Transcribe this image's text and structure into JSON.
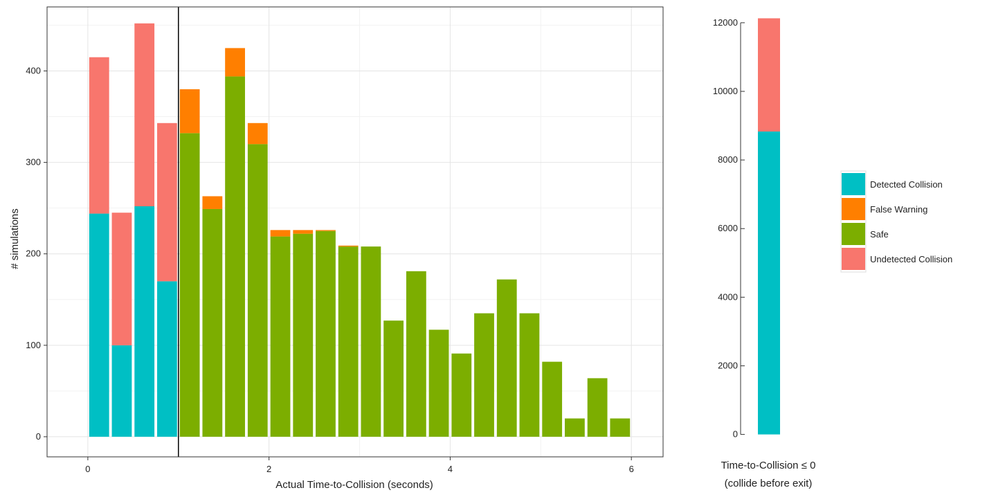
{
  "chart_data": [
    {
      "type": "bar",
      "stacked": true,
      "xlabel": "Actual Time-to-Collision (seconds)",
      "ylabel": "# simulations",
      "xlim": [
        -0.45,
        6.35
      ],
      "ylim": [
        -22,
        470
      ],
      "xticks": [
        0,
        2,
        4,
        6
      ],
      "yticks": [
        0,
        100,
        200,
        300,
        400
      ],
      "grid": true,
      "bar_width": 0.22,
      "threshold_line_x": 1.0,
      "x": [
        0.125,
        0.375,
        0.625,
        0.875,
        1.125,
        1.375,
        1.625,
        1.875,
        2.125,
        2.375,
        2.625,
        2.875,
        3.125,
        3.375,
        3.625,
        3.875,
        4.125,
        4.375,
        4.625,
        4.875,
        5.125,
        5.375,
        5.625,
        5.875
      ],
      "series": [
        {
          "name": "Detected Collision",
          "color": "#00BFC4",
          "values": [
            244,
            100,
            252,
            170,
            0,
            0,
            0,
            0,
            0,
            0,
            0,
            0,
            0,
            0,
            0,
            0,
            0,
            0,
            0,
            0,
            0,
            0,
            0,
            0
          ]
        },
        {
          "name": "Undetected Collision",
          "color": "#F8766D",
          "values": [
            171,
            145,
            200,
            173,
            0,
            0,
            0,
            0,
            0,
            0,
            0,
            0,
            0,
            0,
            0,
            0,
            0,
            0,
            0,
            0,
            0,
            0,
            0,
            0
          ]
        },
        {
          "name": "Safe",
          "color": "#7CAE00",
          "values": [
            0,
            0,
            0,
            0,
            332,
            249,
            394,
            320,
            219,
            222,
            225,
            208,
            208,
            127,
            181,
            117,
            91,
            135,
            172,
            135,
            82,
            20,
            64,
            20
          ]
        },
        {
          "name": "False Warning",
          "color": "#FF7F00",
          "values": [
            0,
            0,
            0,
            0,
            48,
            14,
            31,
            23,
            7,
            4,
            1,
            1,
            0,
            0,
            0,
            0,
            0,
            0,
            0,
            0,
            0,
            0,
            0,
            0
          ]
        }
      ]
    },
    {
      "type": "bar",
      "stacked": true,
      "xlabel": "Time-to-Collision ≤ 0",
      "xlabel2": "(collide before exit)",
      "ylim": [
        -250,
        12300
      ],
      "yticks": [
        0,
        2000,
        4000,
        6000,
        8000,
        10000,
        12000
      ],
      "series": [
        {
          "name": "Detected Collision",
          "color": "#00BFC4",
          "values": [
            8830
          ]
        },
        {
          "name": "Undetected Collision",
          "color": "#F8766D",
          "values": [
            3300
          ]
        }
      ]
    }
  ],
  "legend": {
    "position": "right",
    "items": [
      {
        "label": "Detected Collision",
        "color": "#00BFC4"
      },
      {
        "label": "False Warning",
        "color": "#FF7F00"
      },
      {
        "label": "Safe",
        "color": "#7CAE00"
      },
      {
        "label": "Undetected Collision",
        "color": "#F8766D"
      }
    ]
  }
}
